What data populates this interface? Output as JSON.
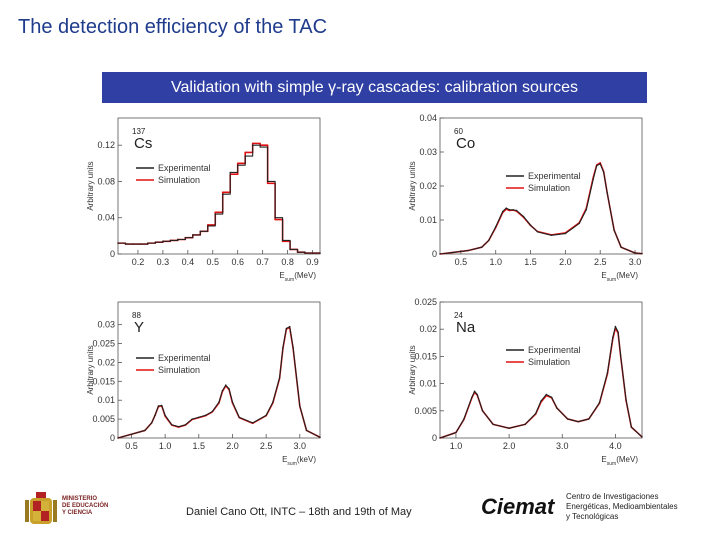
{
  "slide": {
    "title": "The detection efficiency of the TAC",
    "banner": "Validation with simple γ-ray cascades: calibration sources"
  },
  "footer": {
    "author": "Daniel Cano Ott, INTC – 18th and 19th of May",
    "institution_logo": "Ciemat",
    "institution_lines": [
      "Centro de Investigaciones",
      "Energéticas, Medioambientales",
      "y Tecnológicas"
    ],
    "ministry_lines": [
      "MINISTERIO",
      "DE EDUCACIÓN",
      "Y CIENCIA"
    ]
  },
  "colors": {
    "experimental": "#222222",
    "simulation": "#e01010",
    "title": "#1f3b8c",
    "banner": "#2f3fa3"
  },
  "chart_data": [
    {
      "type": "line",
      "isotope_mass": "137",
      "isotope_symbol": "Cs",
      "ylabel": "Arbitrary units",
      "xlabel_main": "E",
      "xlabel_sub": "sum",
      "xlabel_unit": "(MeV)",
      "xlim": [
        0.12,
        0.93
      ],
      "ylim": [
        0,
        0.15
      ],
      "xticks": [
        0.2,
        0.3,
        0.4,
        0.5,
        0.6,
        0.7,
        0.8,
        0.9
      ],
      "xtick_labels": [
        "0.2",
        "0.3",
        "0.4",
        "0.5",
        "0.6",
        "0.7",
        "0.8",
        "0.9"
      ],
      "yticks": [
        0,
        0.04,
        0.08,
        0.12
      ],
      "ytick_labels": [
        "0",
        "0.04",
        "0.08",
        "0.12"
      ],
      "legend": [
        "Experimental",
        "Simulation"
      ],
      "step": true,
      "series": [
        {
          "name": "Experimental",
          "x": [
            0.12,
            0.15,
            0.18,
            0.21,
            0.24,
            0.27,
            0.3,
            0.33,
            0.36,
            0.39,
            0.42,
            0.45,
            0.48,
            0.51,
            0.54,
            0.57,
            0.6,
            0.63,
            0.66,
            0.69,
            0.72,
            0.75,
            0.78,
            0.81,
            0.84,
            0.87,
            0.9,
            0.93
          ],
          "y": [
            0.012,
            0.011,
            0.011,
            0.011,
            0.012,
            0.013,
            0.014,
            0.015,
            0.016,
            0.018,
            0.021,
            0.025,
            0.031,
            0.044,
            0.066,
            0.09,
            0.098,
            0.108,
            0.12,
            0.118,
            0.08,
            0.04,
            0.015,
            0.005,
            0.002,
            0.001,
            0.001,
            0.001
          ]
        },
        {
          "name": "Simulation",
          "x": [
            0.12,
            0.15,
            0.18,
            0.21,
            0.24,
            0.27,
            0.3,
            0.33,
            0.36,
            0.39,
            0.42,
            0.45,
            0.48,
            0.51,
            0.54,
            0.57,
            0.6,
            0.63,
            0.66,
            0.69,
            0.72,
            0.75,
            0.78,
            0.81,
            0.84,
            0.87,
            0.9,
            0.93
          ],
          "y": [
            0.012,
            0.011,
            0.011,
            0.011,
            0.012,
            0.013,
            0.014,
            0.015,
            0.016,
            0.018,
            0.021,
            0.025,
            0.032,
            0.046,
            0.068,
            0.088,
            0.1,
            0.112,
            0.122,
            0.12,
            0.078,
            0.038,
            0.014,
            0.005,
            0.002,
            0.001,
            0.001,
            0.001
          ]
        }
      ]
    },
    {
      "type": "line",
      "isotope_mass": "60",
      "isotope_symbol": "Co",
      "ylabel": "Arbitrary units",
      "xlabel_main": "E",
      "xlabel_sub": "sum",
      "xlabel_unit": "(MeV)",
      "xlim": [
        0.2,
        3.1
      ],
      "ylim": [
        0,
        0.04
      ],
      "xticks": [
        0.5,
        1.0,
        1.5,
        2.0,
        2.5,
        3.0
      ],
      "xtick_labels": [
        "0.5",
        "1.0",
        "1.5",
        "2.0",
        "2.5",
        "3.0"
      ],
      "yticks": [
        0,
        0.01,
        0.02,
        0.03,
        0.04
      ],
      "ytick_labels": [
        "0",
        "0.01",
        "0.02",
        "0.03",
        "0.04"
      ],
      "legend": [
        "Experimental",
        "Simulation"
      ],
      "step": false,
      "series": [
        {
          "name": "Experimental",
          "x": [
            0.2,
            0.4,
            0.6,
            0.8,
            0.9,
            1.0,
            1.1,
            1.15,
            1.2,
            1.25,
            1.3,
            1.4,
            1.5,
            1.6,
            1.8,
            2.0,
            2.2,
            2.3,
            2.4,
            2.45,
            2.5,
            2.55,
            2.6,
            2.7,
            2.8,
            3.0,
            3.1
          ],
          "y": [
            0,
            0.0005,
            0.001,
            0.002,
            0.004,
            0.008,
            0.0125,
            0.0135,
            0.013,
            0.013,
            0.0128,
            0.011,
            0.0085,
            0.0065,
            0.0055,
            0.006,
            0.009,
            0.013,
            0.022,
            0.026,
            0.0265,
            0.024,
            0.018,
            0.007,
            0.002,
            0.0003,
            0.0001
          ]
        },
        {
          "name": "Simulation",
          "x": [
            0.2,
            0.4,
            0.6,
            0.8,
            0.9,
            1.0,
            1.1,
            1.15,
            1.2,
            1.25,
            1.3,
            1.4,
            1.5,
            1.6,
            1.8,
            2.0,
            2.2,
            2.3,
            2.4,
            2.45,
            2.5,
            2.55,
            2.6,
            2.7,
            2.8,
            3.0,
            3.1
          ],
          "y": [
            0,
            0.0005,
            0.001,
            0.002,
            0.004,
            0.0078,
            0.0122,
            0.0132,
            0.0128,
            0.0129,
            0.0126,
            0.0108,
            0.0084,
            0.0066,
            0.0056,
            0.0062,
            0.0092,
            0.0134,
            0.0225,
            0.0262,
            0.0268,
            0.0242,
            0.018,
            0.007,
            0.002,
            0.0003,
            0.0001
          ]
        }
      ]
    },
    {
      "type": "line",
      "isotope_mass": "88",
      "isotope_symbol": "Y",
      "ylabel": "Arbitrary units",
      "xlabel_main": "E",
      "xlabel_sub": "sum",
      "xlabel_unit": "(keV)",
      "xlim": [
        0.3,
        3.3
      ],
      "ylim": [
        0,
        0.036
      ],
      "xticks": [
        0.5,
        1.0,
        1.5,
        2.0,
        2.5,
        3.0
      ],
      "xtick_labels": [
        "0.5",
        "1.0",
        "1.5",
        "2.0",
        "2.5",
        "3.0"
      ],
      "yticks": [
        0,
        0.005,
        0.01,
        0.015,
        0.02,
        0.025,
        0.03
      ],
      "ytick_labels": [
        "0",
        "0.005",
        "0.01",
        "0.015",
        "0.02",
        "0.025",
        "0.03"
      ],
      "legend": [
        "Experimental",
        "Simulation"
      ],
      "step": false,
      "series": [
        {
          "name": "Experimental",
          "x": [
            0.3,
            0.5,
            0.7,
            0.8,
            0.85,
            0.9,
            0.95,
            1.0,
            1.1,
            1.2,
            1.3,
            1.4,
            1.5,
            1.6,
            1.7,
            1.8,
            1.85,
            1.9,
            1.95,
            2.0,
            2.1,
            2.3,
            2.5,
            2.6,
            2.7,
            2.75,
            2.8,
            2.85,
            2.9,
            3.0,
            3.1,
            3.3
          ],
          "y": [
            0,
            0.001,
            0.002,
            0.004,
            0.006,
            0.0085,
            0.0086,
            0.006,
            0.0035,
            0.003,
            0.0035,
            0.005,
            0.0055,
            0.006,
            0.007,
            0.0095,
            0.0125,
            0.014,
            0.013,
            0.0095,
            0.0055,
            0.004,
            0.006,
            0.0095,
            0.016,
            0.024,
            0.029,
            0.0295,
            0.024,
            0.0085,
            0.002,
            0.0002
          ]
        },
        {
          "name": "Simulation",
          "x": [
            0.3,
            0.5,
            0.7,
            0.8,
            0.85,
            0.9,
            0.95,
            1.0,
            1.1,
            1.2,
            1.3,
            1.4,
            1.5,
            1.6,
            1.7,
            1.8,
            1.85,
            1.9,
            1.95,
            2.0,
            2.1,
            2.3,
            2.5,
            2.6,
            2.7,
            2.75,
            2.8,
            2.85,
            2.9,
            3.0,
            3.1,
            3.3
          ],
          "y": [
            0,
            0.001,
            0.002,
            0.004,
            0.006,
            0.0083,
            0.0085,
            0.0058,
            0.0034,
            0.0029,
            0.0034,
            0.0049,
            0.0054,
            0.0059,
            0.0069,
            0.0093,
            0.0123,
            0.0138,
            0.0128,
            0.0093,
            0.0054,
            0.0039,
            0.0059,
            0.0093,
            0.0158,
            0.0238,
            0.0288,
            0.0293,
            0.0238,
            0.0084,
            0.002,
            0.0002
          ]
        }
      ]
    },
    {
      "type": "line",
      "isotope_mass": "24",
      "isotope_symbol": "Na",
      "ylabel": "Arbitrary units",
      "xlabel_main": "E",
      "xlabel_sub": "sum",
      "xlabel_unit": "(MeV)",
      "xlim": [
        0.7,
        4.5
      ],
      "ylim": [
        0,
        0.025
      ],
      "xticks": [
        1.0,
        2.0,
        3.0,
        4.0
      ],
      "xtick_labels": [
        "1.0",
        "2.0",
        "3.0",
        "4.0"
      ],
      "yticks": [
        0,
        0.005,
        0.01,
        0.015,
        0.02,
        0.025
      ],
      "ytick_labels": [
        "0",
        "0.005",
        "0.01",
        "0.015",
        "0.02",
        "0.025"
      ],
      "legend": [
        "Experimental",
        "Simulation"
      ],
      "step": false,
      "series": [
        {
          "name": "Experimental",
          "x": [
            0.7,
            1.0,
            1.15,
            1.3,
            1.35,
            1.4,
            1.5,
            1.7,
            2.0,
            2.3,
            2.5,
            2.6,
            2.7,
            2.8,
            2.9,
            3.1,
            3.3,
            3.5,
            3.7,
            3.85,
            3.95,
            4.0,
            4.05,
            4.1,
            4.2,
            4.3,
            4.5
          ],
          "y": [
            0,
            0.001,
            0.0035,
            0.0075,
            0.0086,
            0.008,
            0.005,
            0.0025,
            0.0018,
            0.0025,
            0.0045,
            0.0068,
            0.008,
            0.0075,
            0.0055,
            0.0035,
            0.003,
            0.0035,
            0.0065,
            0.012,
            0.0185,
            0.0205,
            0.0195,
            0.015,
            0.007,
            0.002,
            0.0002
          ]
        },
        {
          "name": "Simulation",
          "x": [
            0.7,
            1.0,
            1.15,
            1.3,
            1.35,
            1.4,
            1.5,
            1.7,
            2.0,
            2.3,
            2.5,
            2.6,
            2.7,
            2.8,
            2.9,
            3.1,
            3.3,
            3.5,
            3.7,
            3.85,
            3.95,
            4.0,
            4.05,
            4.1,
            4.2,
            4.3,
            4.5
          ],
          "y": [
            0,
            0.001,
            0.0034,
            0.0074,
            0.0084,
            0.0079,
            0.005,
            0.0025,
            0.0018,
            0.0025,
            0.0044,
            0.0066,
            0.0078,
            0.0074,
            0.0055,
            0.0035,
            0.003,
            0.0035,
            0.0064,
            0.0118,
            0.0182,
            0.0202,
            0.0193,
            0.0149,
            0.0069,
            0.002,
            0.0002
          ]
        }
      ]
    }
  ]
}
